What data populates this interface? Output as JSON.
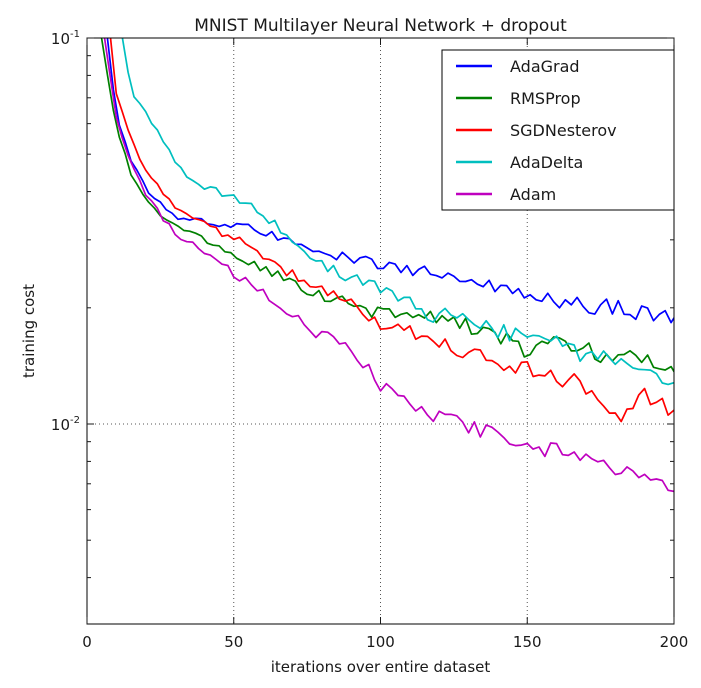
{
  "figure": {
    "title": "MNIST Multilayer Neural Network + dropout"
  },
  "axes": {
    "xlabel": "iterations over entire dataset",
    "ylabel": "training cost",
    "x_ticks": [
      0,
      50,
      100,
      150,
      200
    ],
    "x_tick_labels": [
      "0",
      "50",
      "100",
      "150",
      "200"
    ],
    "y_ticks": [
      {
        "base": "10",
        "exp": "-1",
        "value": 0.1
      },
      {
        "base": "10",
        "exp": "-2",
        "value": 0.01
      }
    ]
  },
  "chart_data": {
    "type": "line",
    "title": "MNIST Multilayer Neural Network + dropout",
    "xlabel": "iterations over entire dataset",
    "ylabel": "training cost",
    "x_range": [
      0,
      200
    ],
    "ylim": [
      0.00303,
      0.1
    ],
    "y_scale": "log",
    "grid": "dotted",
    "grid_x": [
      50,
      100,
      150
    ],
    "grid_y": [
      0.01
    ],
    "legend_position": "upper right",
    "series": [
      {
        "name": "AdaGrad",
        "color": "#0000ff",
        "x": [
          7,
          10,
          15,
          20,
          25,
          30,
          35,
          40,
          45,
          50,
          55,
          60,
          65,
          70,
          75,
          80,
          85,
          90,
          95,
          100,
          105,
          110,
          115,
          120,
          125,
          130,
          135,
          140,
          145,
          150,
          155,
          160,
          165,
          170,
          175,
          180,
          185,
          190,
          195,
          200
        ],
        "y": [
          0.1,
          0.0632,
          0.0483,
          0.0408,
          0.0373,
          0.0344,
          0.0338,
          0.0335,
          0.0332,
          0.033,
          0.0322,
          0.0315,
          0.0305,
          0.0296,
          0.0291,
          0.0285,
          0.0276,
          0.027,
          0.0263,
          0.0258,
          0.0254,
          0.0251,
          0.0247,
          0.0244,
          0.0243,
          0.0238,
          0.0231,
          0.0224,
          0.0218,
          0.0213,
          0.0211,
          0.021,
          0.0206,
          0.0203,
          0.0201,
          0.02,
          0.0196,
          0.0192,
          0.019,
          0.0187
        ]
      },
      {
        "name": "RMSProp",
        "color": "#008000",
        "x": [
          5,
          10,
          15,
          20,
          25,
          30,
          35,
          40,
          45,
          50,
          55,
          60,
          65,
          70,
          75,
          80,
          85,
          90,
          95,
          100,
          105,
          110,
          115,
          120,
          125,
          130,
          135,
          140,
          145,
          150,
          155,
          160,
          165,
          170,
          175,
          180,
          185,
          190,
          195,
          200
        ],
        "y": [
          0.1,
          0.0585,
          0.0446,
          0.0384,
          0.0348,
          0.0325,
          0.0312,
          0.03,
          0.029,
          0.0272,
          0.0262,
          0.0252,
          0.0242,
          0.0232,
          0.0223,
          0.0216,
          0.0209,
          0.0203,
          0.0198,
          0.0194,
          0.0196,
          0.0192,
          0.0188,
          0.0184,
          0.0188,
          0.018,
          0.0175,
          0.0172,
          0.016,
          0.0156,
          0.0158,
          0.0161,
          0.0157,
          0.0155,
          0.0152,
          0.015,
          0.0148,
          0.0146,
          0.0143,
          0.014
        ]
      },
      {
        "name": "SGDNesterov",
        "color": "#ff0000",
        "x": [
          8,
          10,
          15,
          20,
          25,
          30,
          35,
          40,
          45,
          50,
          55,
          60,
          65,
          70,
          75,
          80,
          85,
          90,
          95,
          100,
          105,
          110,
          115,
          120,
          125,
          130,
          135,
          140,
          145,
          150,
          155,
          160,
          165,
          170,
          175,
          180,
          185,
          190,
          195,
          200
        ],
        "y": [
          0.1,
          0.072,
          0.0545,
          0.0455,
          0.0408,
          0.0366,
          0.0348,
          0.033,
          0.0315,
          0.0305,
          0.029,
          0.0275,
          0.0258,
          0.0243,
          0.0233,
          0.0223,
          0.0213,
          0.0203,
          0.019,
          0.0178,
          0.0177,
          0.0175,
          0.017,
          0.0166,
          0.0157,
          0.0152,
          0.0148,
          0.0146,
          0.0142,
          0.0139,
          0.0135,
          0.0133,
          0.0129,
          0.0125,
          0.0115,
          0.0103,
          0.0112,
          0.0119,
          0.0113,
          0.0107
        ]
      },
      {
        "name": "AdaDelta",
        "color": "#00bfbf",
        "x": [
          12,
          15,
          20,
          25,
          30,
          35,
          40,
          45,
          50,
          55,
          60,
          65,
          70,
          75,
          80,
          85,
          90,
          95,
          100,
          105,
          110,
          115,
          120,
          125,
          130,
          135,
          140,
          145,
          150,
          155,
          160,
          165,
          170,
          175,
          180,
          185,
          190,
          195,
          200
        ],
        "y": [
          0.1,
          0.0726,
          0.0644,
          0.0555,
          0.0483,
          0.0428,
          0.0412,
          0.0398,
          0.0385,
          0.0368,
          0.0348,
          0.0325,
          0.03,
          0.0271,
          0.0258,
          0.0248,
          0.024,
          0.0232,
          0.0226,
          0.0213,
          0.0204,
          0.0196,
          0.019,
          0.0189,
          0.0185,
          0.0178,
          0.0174,
          0.0169,
          0.0166,
          0.0163,
          0.0161,
          0.0155,
          0.015,
          0.0148,
          0.0146,
          0.0143,
          0.014,
          0.0135,
          0.013
        ]
      },
      {
        "name": "Adam",
        "color": "#bf00bf",
        "x": [
          6,
          10,
          15,
          20,
          25,
          30,
          35,
          40,
          45,
          50,
          55,
          60,
          65,
          70,
          75,
          80,
          85,
          90,
          95,
          100,
          105,
          110,
          115,
          120,
          125,
          130,
          135,
          140,
          145,
          150,
          155,
          160,
          165,
          170,
          175,
          180,
          185,
          190,
          195,
          200
        ],
        "y": [
          0.1,
          0.0622,
          0.0469,
          0.0396,
          0.0348,
          0.0312,
          0.0294,
          0.0278,
          0.0262,
          0.0245,
          0.0232,
          0.0218,
          0.0205,
          0.0193,
          0.0175,
          0.0171,
          0.0166,
          0.0159,
          0.0141,
          0.0125,
          0.0119,
          0.0112,
          0.0108,
          0.0105,
          0.0103,
          0.0098,
          0.0095,
          0.0094,
          0.0091,
          0.0089,
          0.0087,
          0.0085,
          0.0082,
          0.008,
          0.0077,
          0.0075,
          0.0074,
          0.0073,
          0.007,
          0.0068
        ]
      }
    ]
  }
}
